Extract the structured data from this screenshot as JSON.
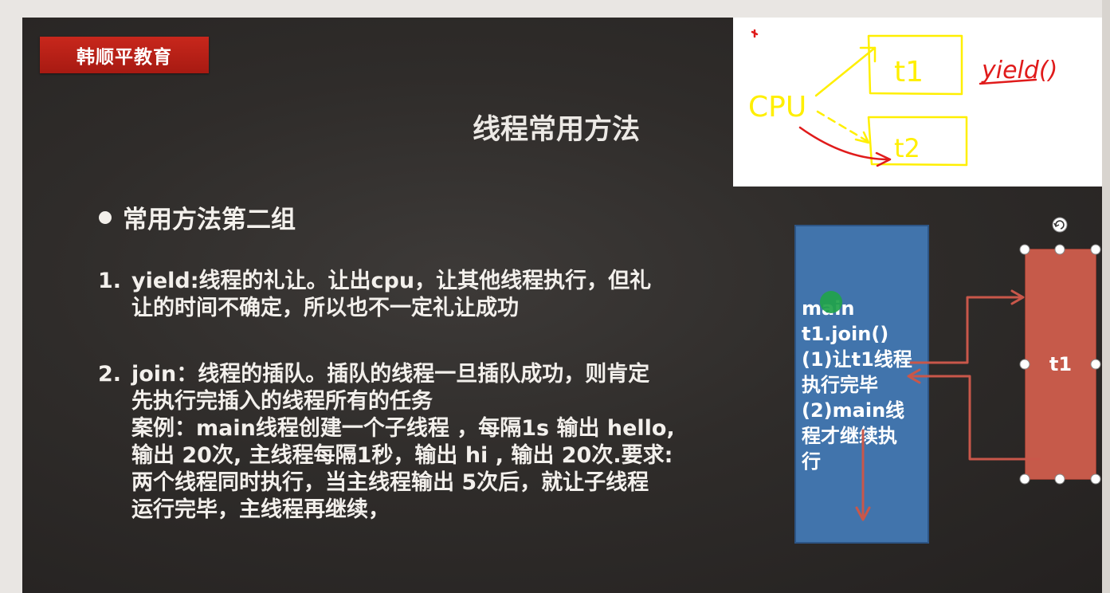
{
  "brand": {
    "label": "韩顺平教育"
  },
  "slide": {
    "title": "线程常用方法",
    "section_heading": "常用方法第二组",
    "items": [
      {
        "number": "1.",
        "lines": [
          "yield:线程的礼让。让出cpu，让其他线程执行，但礼",
          "让的时间不确定，所以也不一定礼让成功"
        ]
      },
      {
        "number": "2.",
        "lines": [
          "join：线程的插队。插队的线程一旦插队成功，则肯定",
          "先执行完插入的线程所有的任务",
          "案例：main线程创建一个子线程 ，每隔1s 输出 hello,",
          "输出 20次, 主线程每隔1秒，输出 hi , 输出 20次.要求:",
          "两个线程同时执行，当主线程输出 5次后，就让子线程",
          "运行完毕，主线程再继续，"
        ]
      }
    ]
  },
  "diagram": {
    "main_box_lines": [
      "main",
      "t1.join()",
      "(1)让t1线程",
      "执行完毕",
      "(2)main线",
      "程才继续执",
      "行"
    ],
    "t1_box_label": "t1"
  },
  "sketch": {
    "cpu_label": "CPU",
    "t1_label": "t1",
    "t2_label": "t2",
    "yield_label": "yield()"
  },
  "colors": {
    "slide_bg": "#2f2c2a",
    "brand_red": "#b8221a",
    "main_box": "#4174ac",
    "t1_box": "#c65a4a",
    "pen_yellow": "#ffef00",
    "pen_red": "#e01b1b",
    "arrow_red": "#c9574a"
  }
}
